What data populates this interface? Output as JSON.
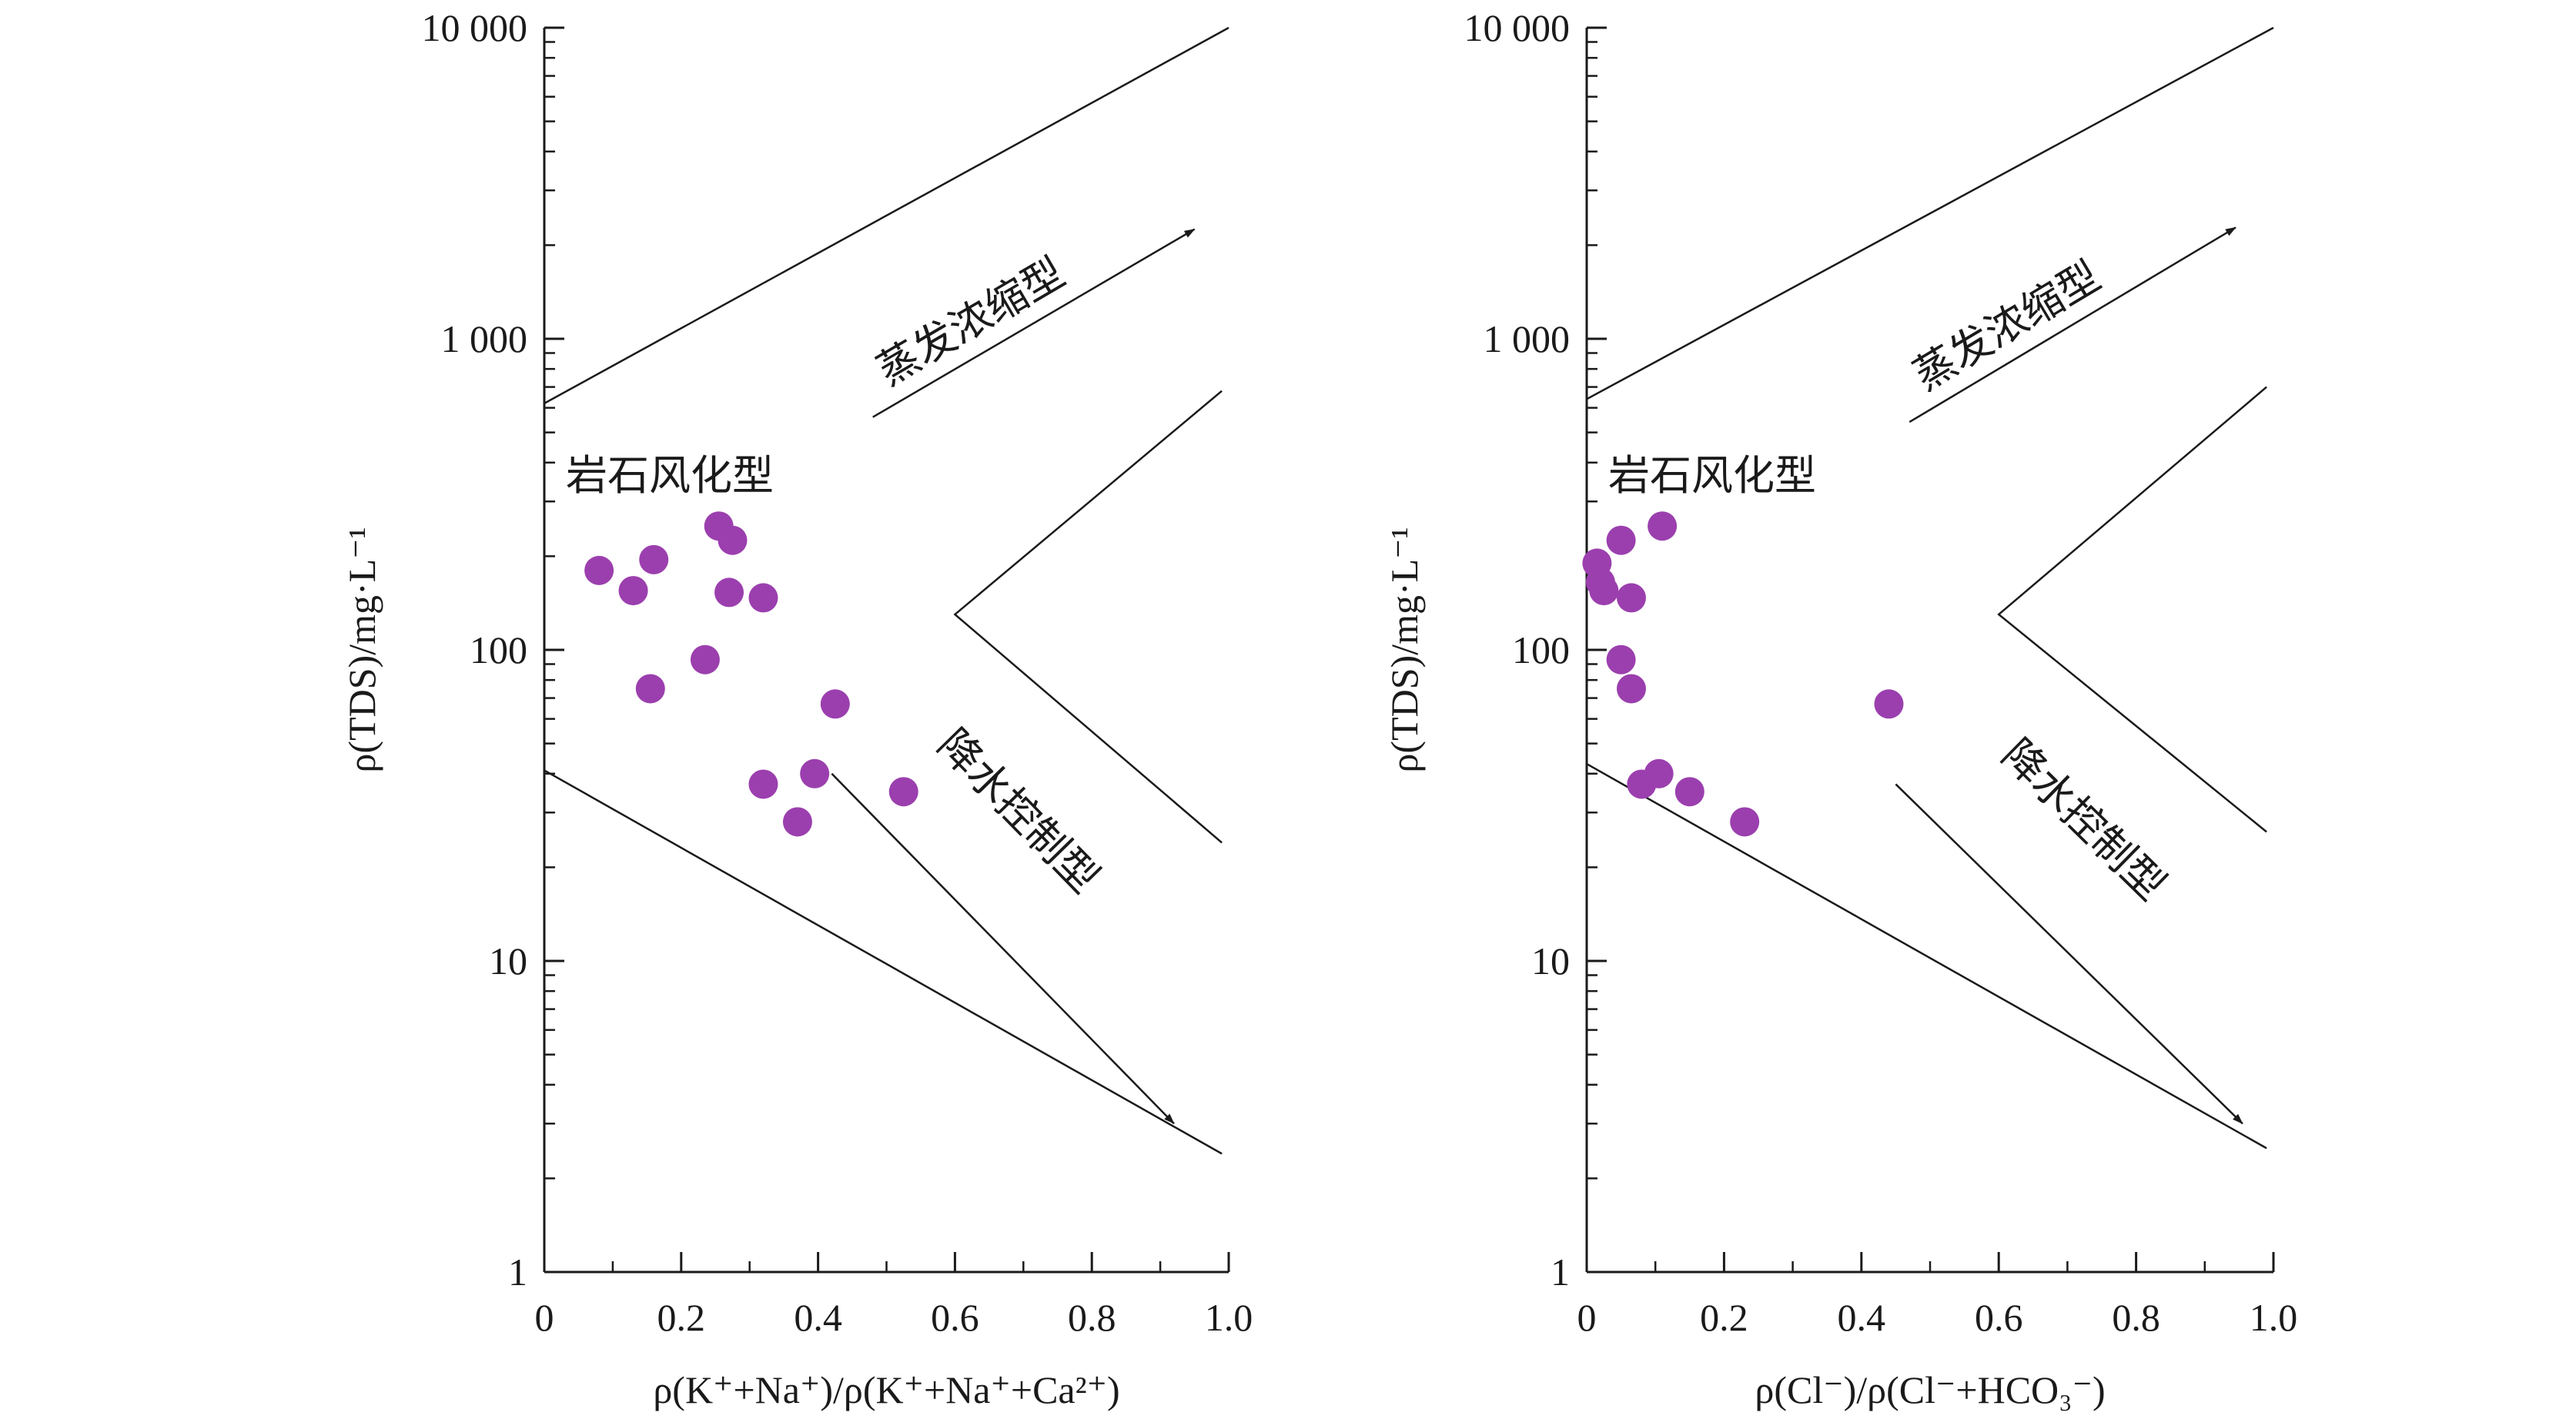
{
  "chart_data": [
    {
      "type": "scatter",
      "xlabel": "ρ(K⁺+Na⁺)/ρ(K⁺+Na⁺+Ca²⁺)",
      "ylabel": "ρ(TDS)/mg·L⁻¹",
      "yscale": "log",
      "xlim": [
        0,
        1.0
      ],
      "ylim": [
        1,
        10000
      ],
      "x_ticks": [
        "0",
        "0.2",
        "0.4",
        "0.6",
        "0.8",
        "1.0"
      ],
      "y_ticks": [
        "1",
        "10",
        "100",
        "1 000",
        "10 000"
      ],
      "marker_color": "#9b3fae",
      "zones": {
        "rock": "岩石风化型",
        "evaporation": "蒸发浓缩型",
        "precipitation": "降水控制型"
      },
      "boundary": {
        "upper": [
          [
            0,
            620
          ],
          [
            1.0,
            10000
          ]
        ],
        "lower": [
          [
            0,
            41
          ],
          [
            0.99,
            2.4
          ]
        ],
        "inner": [
          [
            0.99,
            680
          ],
          [
            0.6,
            130
          ],
          [
            0.99,
            24
          ]
        ]
      },
      "arrows": {
        "evaporation": [
          [
            0.48,
            560
          ],
          [
            0.95,
            2250
          ]
        ],
        "precipitation": [
          [
            0.42,
            40
          ],
          [
            0.92,
            3.0
          ]
        ]
      },
      "points": [
        {
          "x": 0.08,
          "y": 180
        },
        {
          "x": 0.13,
          "y": 155
        },
        {
          "x": 0.16,
          "y": 195
        },
        {
          "x": 0.155,
          "y": 75
        },
        {
          "x": 0.235,
          "y": 93
        },
        {
          "x": 0.255,
          "y": 250
        },
        {
          "x": 0.275,
          "y": 225
        },
        {
          "x": 0.27,
          "y": 153
        },
        {
          "x": 0.32,
          "y": 147
        },
        {
          "x": 0.32,
          "y": 37
        },
        {
          "x": 0.37,
          "y": 28
        },
        {
          "x": 0.395,
          "y": 40
        },
        {
          "x": 0.425,
          "y": 67
        },
        {
          "x": 0.525,
          "y": 35
        }
      ]
    },
    {
      "type": "scatter",
      "xlabel": "ρ(Cl⁻)/ρ(Cl⁻+HCO₃⁻)",
      "ylabel": "ρ(TDS)/mg·L⁻¹",
      "yscale": "log",
      "xlim": [
        0,
        1.0
      ],
      "ylim": [
        1,
        10000
      ],
      "x_ticks": [
        "0",
        "0.2",
        "0.4",
        "0.6",
        "0.8",
        "1.0"
      ],
      "y_ticks": [
        "1",
        "10",
        "100",
        "1 000",
        "10 000"
      ],
      "marker_color": "#9b3fae",
      "zones": {
        "rock": "岩石风化型",
        "evaporation": "蒸发浓缩型",
        "precipitation": "降水控制型"
      },
      "boundary": {
        "upper": [
          [
            0,
            640
          ],
          [
            1.0,
            10000
          ]
        ],
        "lower": [
          [
            0,
            43
          ],
          [
            0.99,
            2.5
          ]
        ],
        "inner": [
          [
            0.99,
            700
          ],
          [
            0.6,
            130
          ],
          [
            0.99,
            26
          ]
        ]
      },
      "arrows": {
        "evaporation": [
          [
            0.47,
            540
          ],
          [
            0.945,
            2280
          ]
        ],
        "precipitation": [
          [
            0.45,
            37
          ],
          [
            0.955,
            3.0
          ]
        ]
      },
      "points": [
        {
          "x": 0.015,
          "y": 190
        },
        {
          "x": 0.02,
          "y": 165
        },
        {
          "x": 0.025,
          "y": 155
        },
        {
          "x": 0.05,
          "y": 225
        },
        {
          "x": 0.065,
          "y": 147
        },
        {
          "x": 0.05,
          "y": 93
        },
        {
          "x": 0.065,
          "y": 75
        },
        {
          "x": 0.11,
          "y": 250
        },
        {
          "x": 0.08,
          "y": 37
        },
        {
          "x": 0.105,
          "y": 40
        },
        {
          "x": 0.15,
          "y": 35
        },
        {
          "x": 0.23,
          "y": 28
        },
        {
          "x": 0.44,
          "y": 67
        }
      ]
    }
  ]
}
